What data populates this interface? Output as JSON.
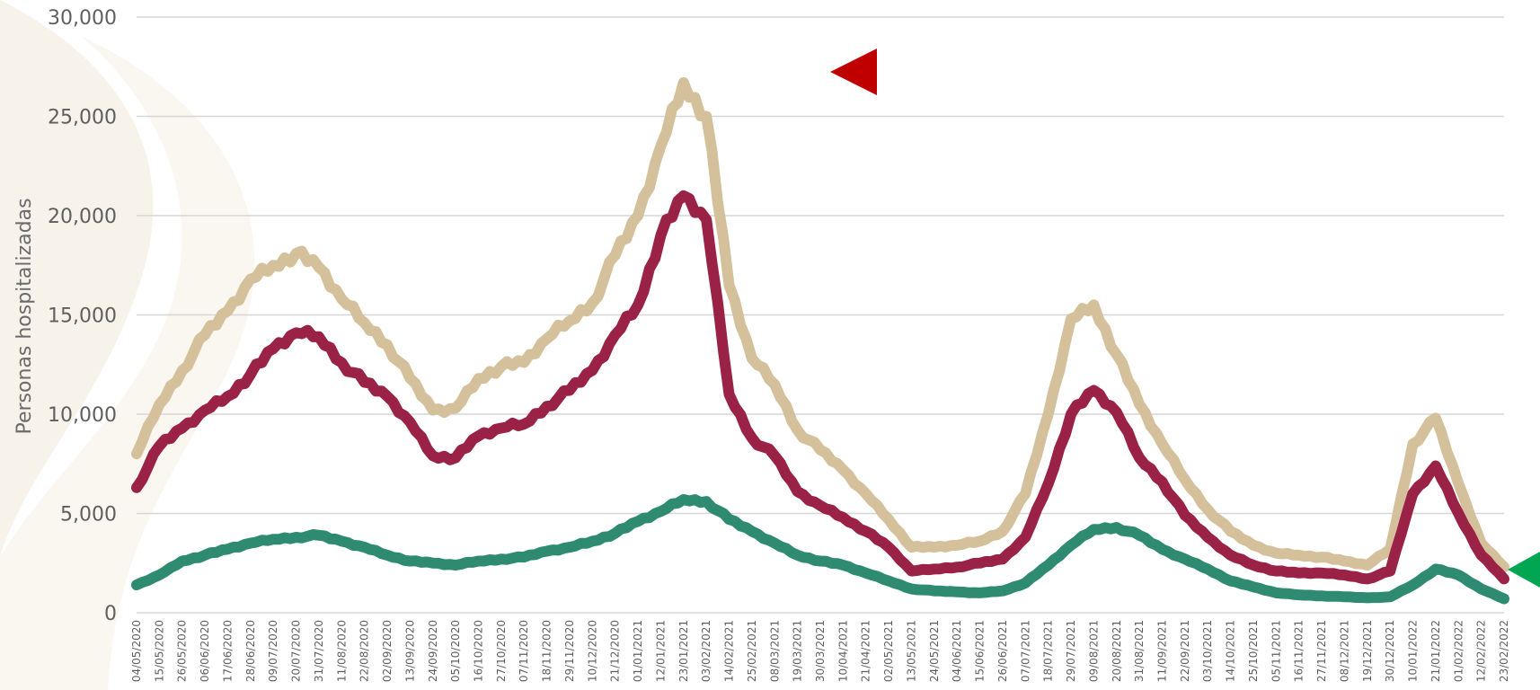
{
  "chart_data": {
    "type": "line",
    "ylabel": "Personas hospitalizadas",
    "xlabel": "",
    "ylim": [
      0,
      30000
    ],
    "yticks": [
      "0",
      "5,000",
      "10,000",
      "15,000",
      "20,000",
      "25,000",
      "30,000"
    ],
    "grid": true,
    "x_tick_labels": [
      "04/05/2020",
      "15/05/2020",
      "26/05/2020",
      "06/06/2020",
      "17/06/2020",
      "28/06/2020",
      "09/07/2020",
      "20/07/2020",
      "31/07/2020",
      "11/08/2020",
      "22/08/2020",
      "02/09/2020",
      "13/09/2020",
      "24/09/2020",
      "05/10/2020",
      "16/10/2020",
      "27/10/2020",
      "07/11/2020",
      "18/11/2020",
      "29/11/2020",
      "10/12/2020",
      "21/12/2020",
      "01/01/2021",
      "12/01/2021",
      "23/01/2021",
      "03/02/2021",
      "14/02/2021",
      "25/02/2021",
      "08/03/2021",
      "19/03/2021",
      "30/03/2021",
      "10/04/2021",
      "21/04/2021",
      "02/05/2021",
      "13/05/2021",
      "24/05/2021",
      "04/06/2021",
      "15/06/2021",
      "26/06/2021",
      "07/07/2021",
      "18/07/2021",
      "29/07/2021",
      "09/08/2021",
      "20/08/2021",
      "31/08/2021",
      "11/09/2021",
      "22/09/2021",
      "03/10/2021",
      "14/10/2021",
      "25/10/2021",
      "05/11/2021",
      "16/11/2021",
      "27/11/2021",
      "08/12/2021",
      "19/12/2021",
      "30/12/2021",
      "10/01/2022",
      "21/01/2022",
      "01/02/2022",
      "12/02/2022",
      "23/02/2022"
    ],
    "series": [
      {
        "color": "#d4c19c",
        "values": [
          8000,
          10500,
          12200,
          14000,
          15200,
          16800,
          17500,
          18100,
          17400,
          15800,
          14600,
          13500,
          11800,
          10200,
          10300,
          11800,
          12400,
          12600,
          13800,
          14700,
          15600,
          18000,
          20000,
          23500,
          26700,
          25000,
          16500,
          12800,
          11500,
          9200,
          8200,
          7200,
          6000,
          4700,
          3300,
          3300,
          3400,
          3600,
          4100,
          6000,
          10000,
          14800,
          15500,
          13000,
          10500,
          8500,
          6700,
          5200,
          4100,
          3400,
          3000,
          2900,
          2800,
          2600,
          2400,
          3200,
          8500,
          9800,
          6500,
          3500,
          2300
        ]
      },
      {
        "color": "#9b2247",
        "values": [
          6300,
          8400,
          9300,
          10200,
          10900,
          12000,
          13300,
          14100,
          13900,
          12600,
          11600,
          10900,
          9600,
          7900,
          7800,
          8900,
          9300,
          9500,
          10400,
          11200,
          12200,
          14000,
          15500,
          19000,
          21000,
          19800,
          11000,
          8800,
          7900,
          6100,
          5400,
          4800,
          4100,
          3300,
          2100,
          2200,
          2300,
          2500,
          2700,
          3800,
          6500,
          10000,
          11200,
          10100,
          7800,
          6600,
          4900,
          3800,
          2900,
          2400,
          2100,
          2000,
          2000,
          1900,
          1700,
          2100,
          6000,
          7400,
          5000,
          2900,
          1700
        ]
      },
      {
        "color": "#2e8b72",
        "values": [
          1400,
          1900,
          2600,
          2900,
          3200,
          3500,
          3700,
          3800,
          3900,
          3600,
          3300,
          2900,
          2600,
          2500,
          2400,
          2600,
          2700,
          2800,
          3100,
          3300,
          3600,
          4000,
          4600,
          5100,
          5700,
          5600,
          4700,
          4100,
          3500,
          2900,
          2600,
          2400,
          2000,
          1600,
          1200,
          1100,
          1050,
          1000,
          1100,
          1500,
          2400,
          3400,
          4200,
          4300,
          3900,
          3200,
          2700,
          2200,
          1600,
          1300,
          1000,
          900,
          850,
          800,
          750,
          800,
          1400,
          2200,
          1900,
          1200,
          700
        ]
      }
    ],
    "markers": [
      {
        "color": "#c00000",
        "direction": "left",
        "label": ""
      },
      {
        "color": "#00a651",
        "direction": "left",
        "label": ""
      }
    ]
  }
}
